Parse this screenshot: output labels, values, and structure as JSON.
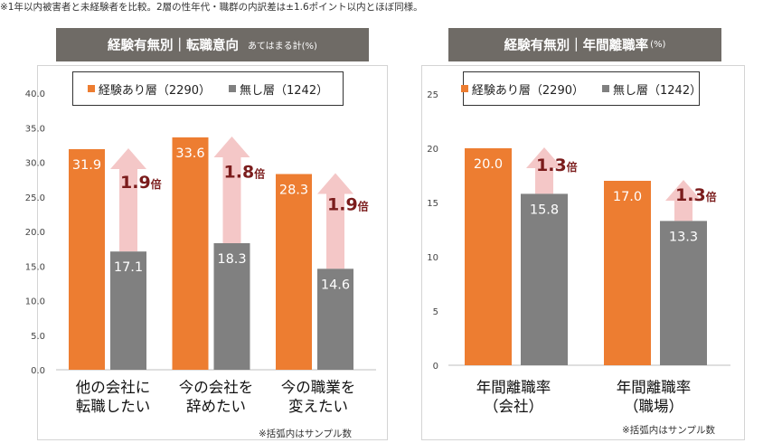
{
  "note_top": "※1年以内被害者と未経験者を比較。2層の性年代・職群の内訳差は±1.6ポイント以内とほぼ同様。",
  "colors": {
    "experienced": "#ed7d31",
    "none": "#808080",
    "arrow": "#f4c7c7",
    "multiplier": "#7b1c1c",
    "title_bg": "#6f6b66"
  },
  "chart_data": [
    {
      "type": "bar",
      "title": "経験有無別｜転職意向",
      "subtitle": "あてはまる計(%)",
      "legend": [
        "経験あり層（2290）",
        "無し層（1242）"
      ],
      "ylim": [
        0,
        40
      ],
      "yticks": [
        "0.0",
        "5.0",
        "10.0",
        "15.0",
        "20.0",
        "25.0",
        "30.0",
        "35.0",
        "40.0"
      ],
      "categories": [
        [
          "他の会社に",
          "転職したい"
        ],
        [
          "今の会社を",
          "辞めたい"
        ],
        [
          "今の職業を",
          "変えたい"
        ]
      ],
      "series": [
        {
          "name": "経験あり層（2290）",
          "values": [
            31.9,
            33.6,
            28.3
          ],
          "labels": [
            "31.9",
            "33.6",
            "28.3"
          ]
        },
        {
          "name": "無し層（1242）",
          "values": [
            17.1,
            18.3,
            14.6
          ],
          "labels": [
            "17.1",
            "18.3",
            "14.6"
          ]
        }
      ],
      "multipliers": [
        {
          "num": "1.9",
          "unit": "倍"
        },
        {
          "num": "1.8",
          "unit": "倍"
        },
        {
          "num": "1.9",
          "unit": "倍"
        }
      ],
      "footnote": "※括弧内はサンプル数"
    },
    {
      "type": "bar",
      "title": "経験有無別｜年間離職率",
      "unit": "(%)",
      "legend": [
        "経験あり層（2290）",
        "無し層（1242）"
      ],
      "ylim": [
        0,
        25
      ],
      "yticks": [
        "0",
        "5",
        "10",
        "15",
        "20",
        "25"
      ],
      "categories": [
        [
          "年間離職率",
          "（会社）"
        ],
        [
          "年間離職率",
          "（職場）"
        ]
      ],
      "series": [
        {
          "name": "経験あり層（2290）",
          "values": [
            20.0,
            17.0
          ],
          "labels": [
            "20.0",
            "17.0"
          ]
        },
        {
          "name": "無し層（1242）",
          "values": [
            15.8,
            13.3
          ],
          "labels": [
            "15.8",
            "13.3"
          ]
        }
      ],
      "multipliers": [
        {
          "num": "1.3",
          "unit": "倍"
        },
        {
          "num": "1.3",
          "unit": "倍"
        }
      ],
      "footnote": "※括弧内はサンプル数"
    }
  ]
}
